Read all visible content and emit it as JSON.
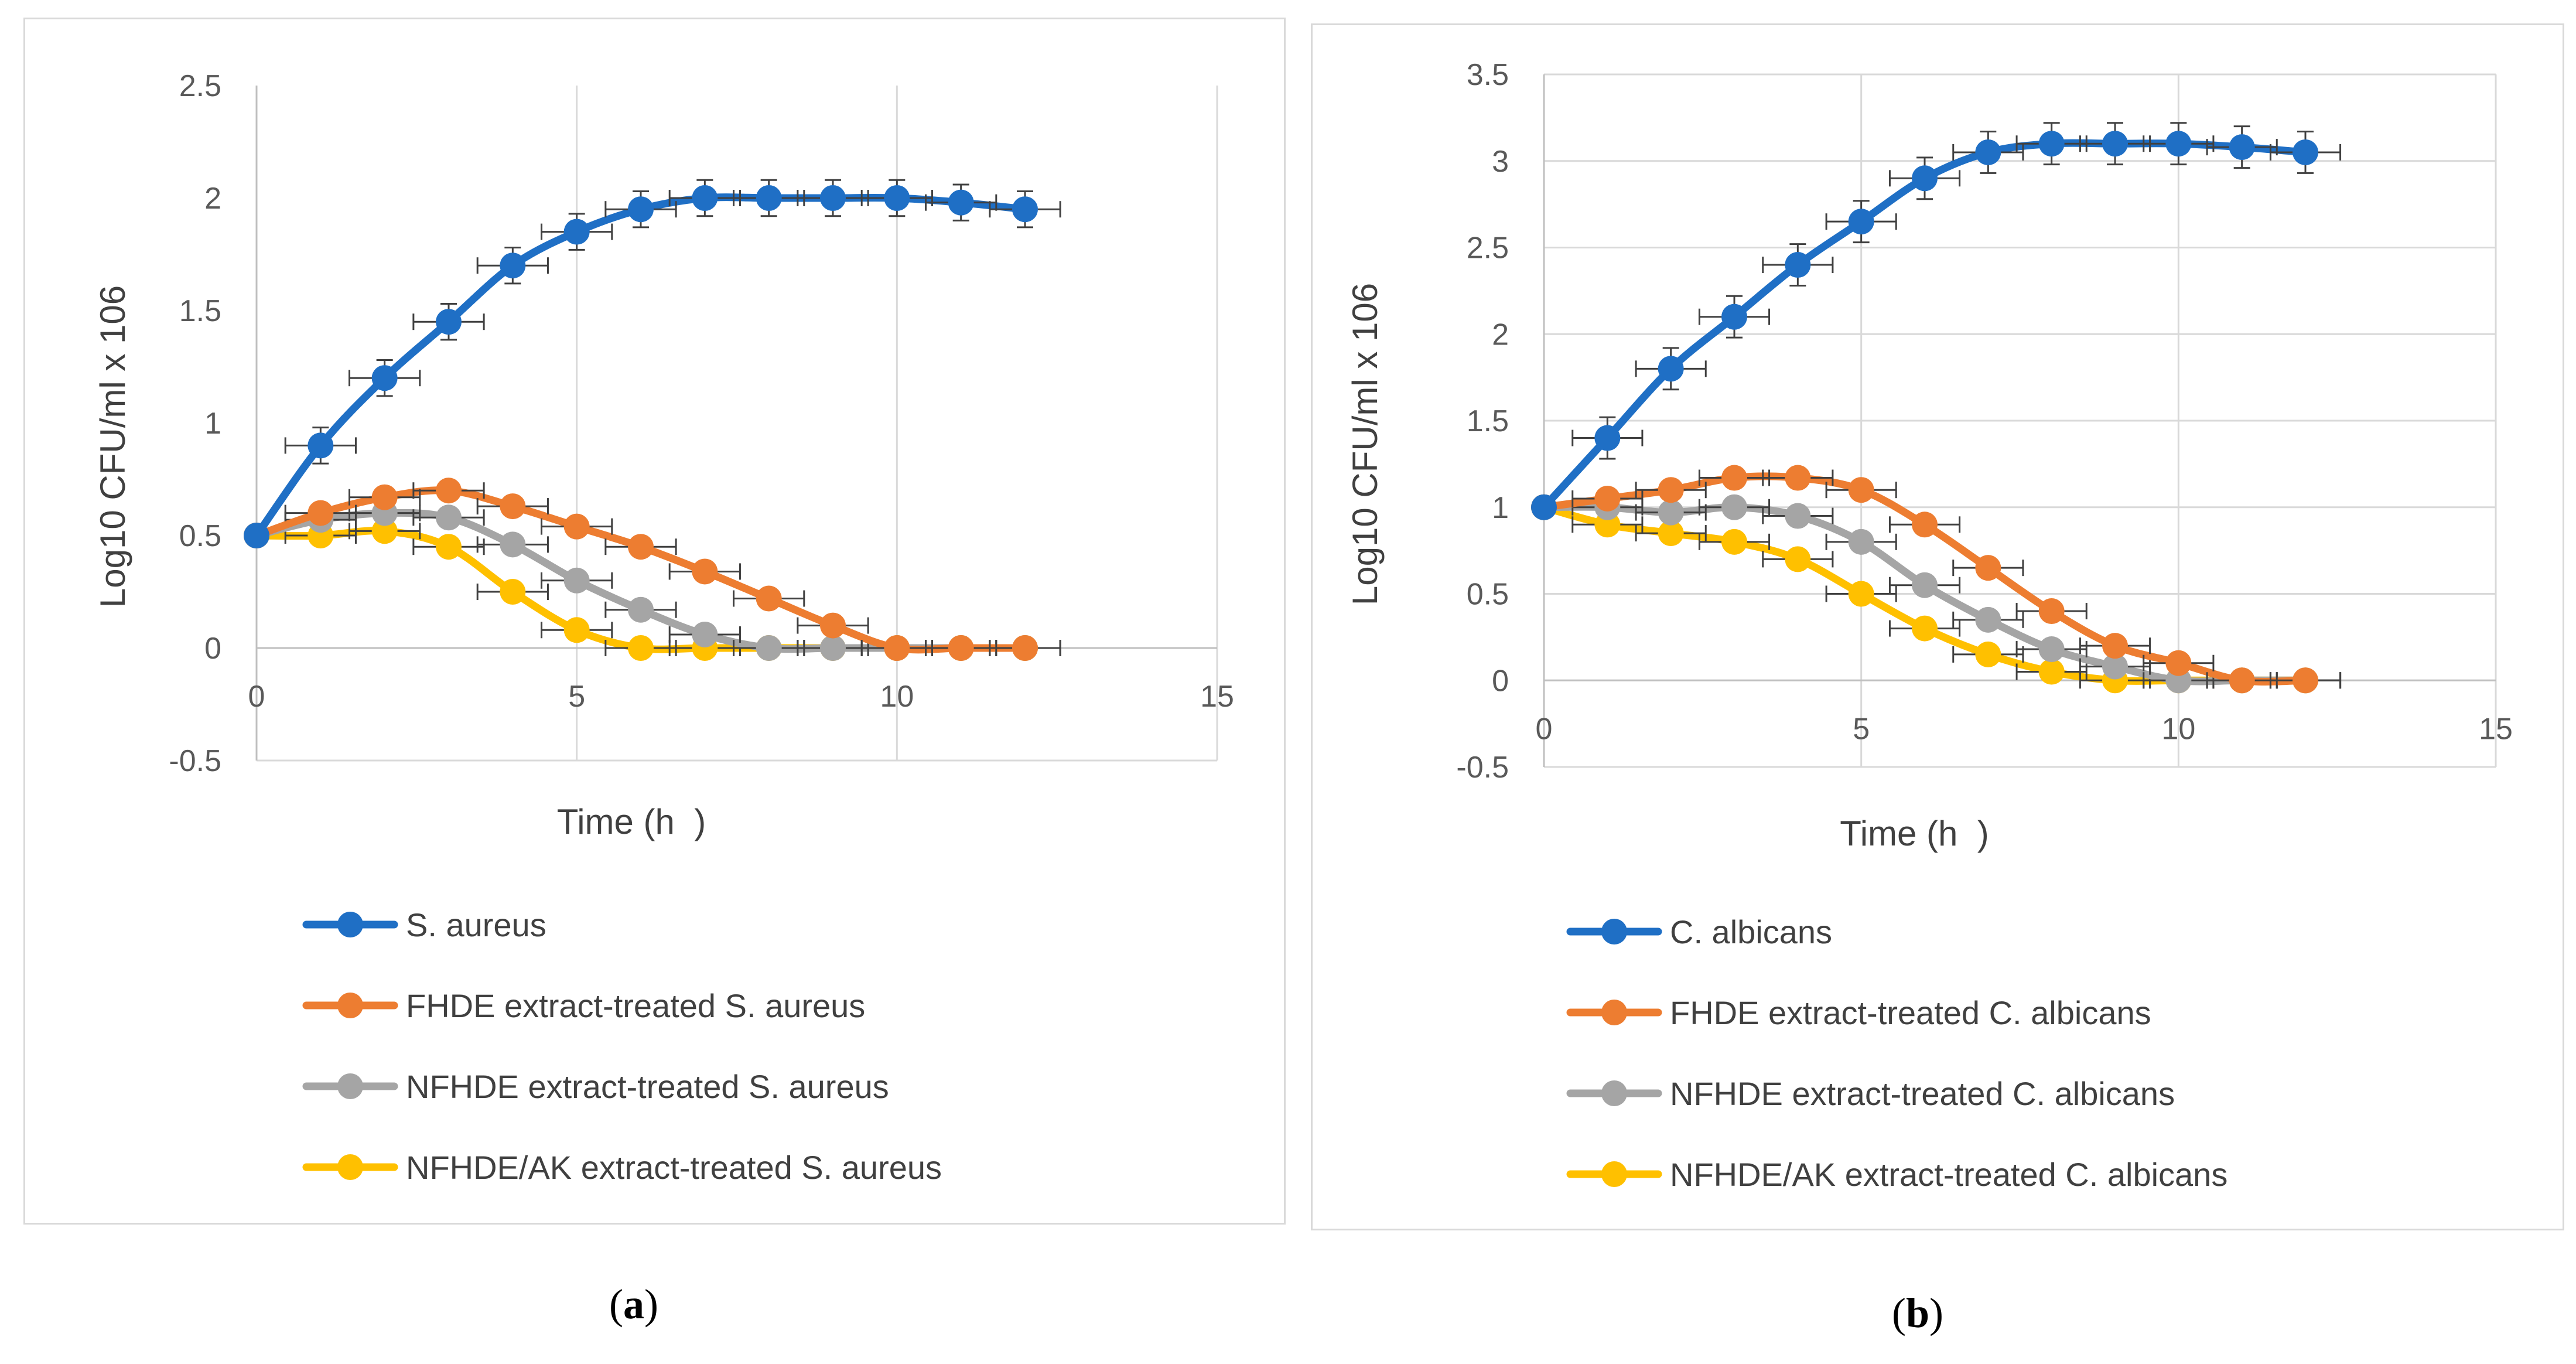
{
  "chart_data": [
    {
      "type": "line",
      "panel_label": "a",
      "title": "",
      "xlabel": "Time (h  )",
      "ylabel": "Log10 CFU/ml x 106",
      "xlim": [
        0,
        15
      ],
      "ylim": [
        -0.5,
        2.5
      ],
      "xticks": [
        0,
        5,
        10,
        15
      ],
      "yticks": [
        -0.5,
        0,
        0.5,
        1,
        1.5,
        2,
        2.5
      ],
      "ytick_labels": [
        "-0.5",
        "0",
        "0.5",
        "1",
        "1.5",
        "2",
        "2.5"
      ],
      "xtick_labels": [
        "0",
        "5",
        "10",
        "15"
      ],
      "grid": "vertical",
      "legend_position": "bottom",
      "x": [
        0,
        1,
        2,
        3,
        4,
        5,
        6,
        7,
        8,
        9,
        10,
        11,
        12
      ],
      "series": [
        {
          "name": "S. aureus",
          "color": "#1f6fc5",
          "values": [
            0.5,
            0.9,
            1.2,
            1.45,
            1.7,
            1.85,
            1.95,
            2.0,
            2.0,
            2.0,
            2.0,
            1.98,
            1.95
          ],
          "error": 0.08
        },
        {
          "name": "FHDE extract-treated S. aureus",
          "color": "#ed7d31",
          "values": [
            0.5,
            0.6,
            0.67,
            0.7,
            0.63,
            0.54,
            0.45,
            0.34,
            0.22,
            0.1,
            0.0,
            0.0,
            0.0
          ],
          "error": 0.0
        },
        {
          "name": "NFHDE extract-treated S. aureus",
          "color": "#a5a5a5",
          "values": [
            0.5,
            0.57,
            0.6,
            0.58,
            0.46,
            0.3,
            0.17,
            0.06,
            0.0,
            0.0,
            0.0,
            0.0,
            0.0
          ],
          "error": 0.0
        },
        {
          "name": "NFHDE/AK extract-treated S. aureus",
          "color": "#ffc000",
          "values": [
            0.5,
            0.5,
            0.52,
            0.45,
            0.25,
            0.08,
            0.0,
            0.0,
            0.0,
            0.0,
            0.0,
            0.0,
            0.0
          ],
          "error": 0.0
        }
      ]
    },
    {
      "type": "line",
      "panel_label": "b",
      "title": "",
      "xlabel": "Time (h  )",
      "ylabel": "Log10 CFU/ml x 106",
      "xlim": [
        0,
        15
      ],
      "ylim": [
        -0.5,
        3.5
      ],
      "xticks": [
        0,
        5,
        10,
        15
      ],
      "yticks": [
        -0.5,
        0,
        0.5,
        1,
        1.5,
        2,
        2.5,
        3,
        3.5
      ],
      "ytick_labels": [
        "-0.5",
        "0",
        "0.5",
        "1",
        "1.5",
        "2",
        "2.5",
        "3",
        "3.5"
      ],
      "xtick_labels": [
        "0",
        "5",
        "10",
        "15"
      ],
      "grid": "both",
      "legend_position": "bottom",
      "x": [
        0,
        1,
        2,
        3,
        4,
        5,
        6,
        7,
        8,
        9,
        10,
        11,
        12
      ],
      "series": [
        {
          "name": "C. albicans",
          "color": "#1f6fc5",
          "values": [
            1.0,
            1.4,
            1.8,
            2.1,
            2.4,
            2.65,
            2.9,
            3.05,
            3.1,
            3.1,
            3.1,
            3.08,
            3.05
          ],
          "error": 0.12
        },
        {
          "name": "FHDE extract-treated C. albicans",
          "color": "#ed7d31",
          "values": [
            1.0,
            1.05,
            1.1,
            1.17,
            1.17,
            1.1,
            0.9,
            0.65,
            0.4,
            0.2,
            0.1,
            0.0,
            0.0
          ],
          "error": 0.0
        },
        {
          "name": "NFHDE extract-treated C. albicans",
          "color": "#a5a5a5",
          "values": [
            1.0,
            1.0,
            0.97,
            1.0,
            0.95,
            0.8,
            0.55,
            0.35,
            0.18,
            0.08,
            0.0,
            0.0,
            0.0
          ],
          "error": 0.0
        },
        {
          "name": "NFHDE/AK extract-treated C. albicans",
          "color": "#ffc000",
          "values": [
            1.0,
            0.9,
            0.85,
            0.8,
            0.7,
            0.5,
            0.3,
            0.15,
            0.05,
            0.0,
            0.0,
            0.0,
            0.0
          ],
          "error": 0.0
        }
      ]
    }
  ],
  "captions": {
    "a": "a",
    "b": "b"
  }
}
